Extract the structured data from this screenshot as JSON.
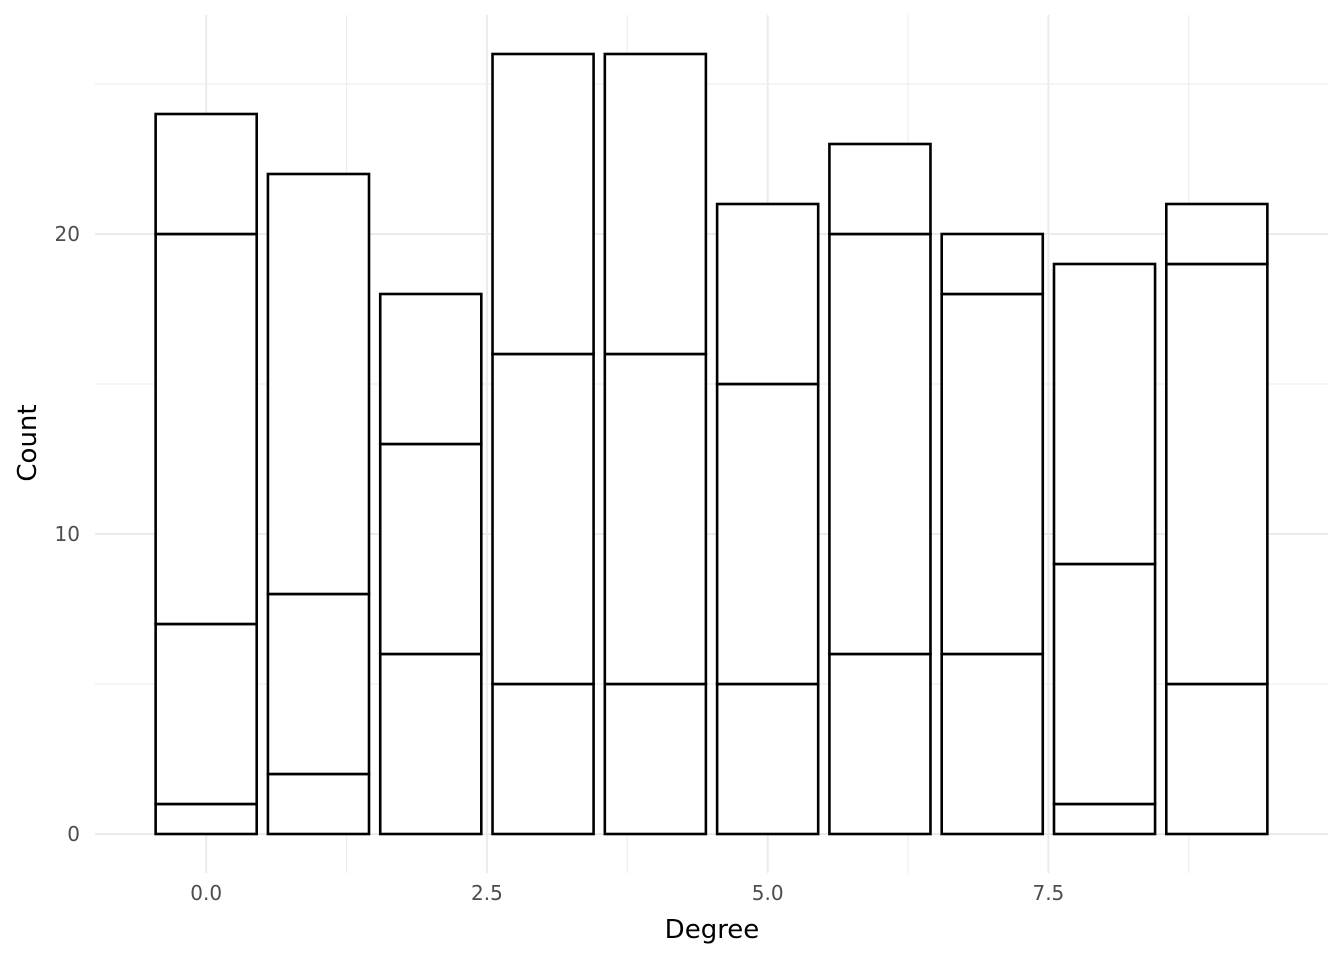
{
  "chart_data": {
    "type": "bar",
    "stacked": true,
    "xlabel": "Degree",
    "ylabel": "Count",
    "x": [
      0,
      1,
      2,
      3,
      4,
      5,
      6,
      7,
      8,
      9
    ],
    "stack_segments": [
      [
        1,
        6,
        13,
        4
      ],
      [
        2,
        6,
        14
      ],
      [
        6,
        7,
        5
      ],
      [
        5,
        11,
        10
      ],
      [
        5,
        11,
        10
      ],
      [
        5,
        10,
        6
      ],
      [
        6,
        14,
        3
      ],
      [
        6,
        12,
        2
      ],
      [
        1,
        8,
        10
      ],
      [
        5,
        14,
        2
      ]
    ],
    "totals": [
      24,
      22,
      18,
      26,
      26,
      21,
      23,
      20,
      19,
      21
    ],
    "xlim": [
      -0.99,
      9.99
    ],
    "ylim": [
      -1.3,
      27.3
    ],
    "x_ticks": [
      0.0,
      2.5,
      5.0,
      7.5
    ],
    "x_tick_labels": [
      "0.0",
      "2.5",
      "5.0",
      "7.5"
    ],
    "y_ticks": [
      0,
      10,
      20
    ],
    "y_tick_labels": [
      "0",
      "10",
      "20"
    ],
    "bar_fill": "#ffffff",
    "bar_outline": "#000000",
    "grid": true,
    "legend": "none"
  }
}
